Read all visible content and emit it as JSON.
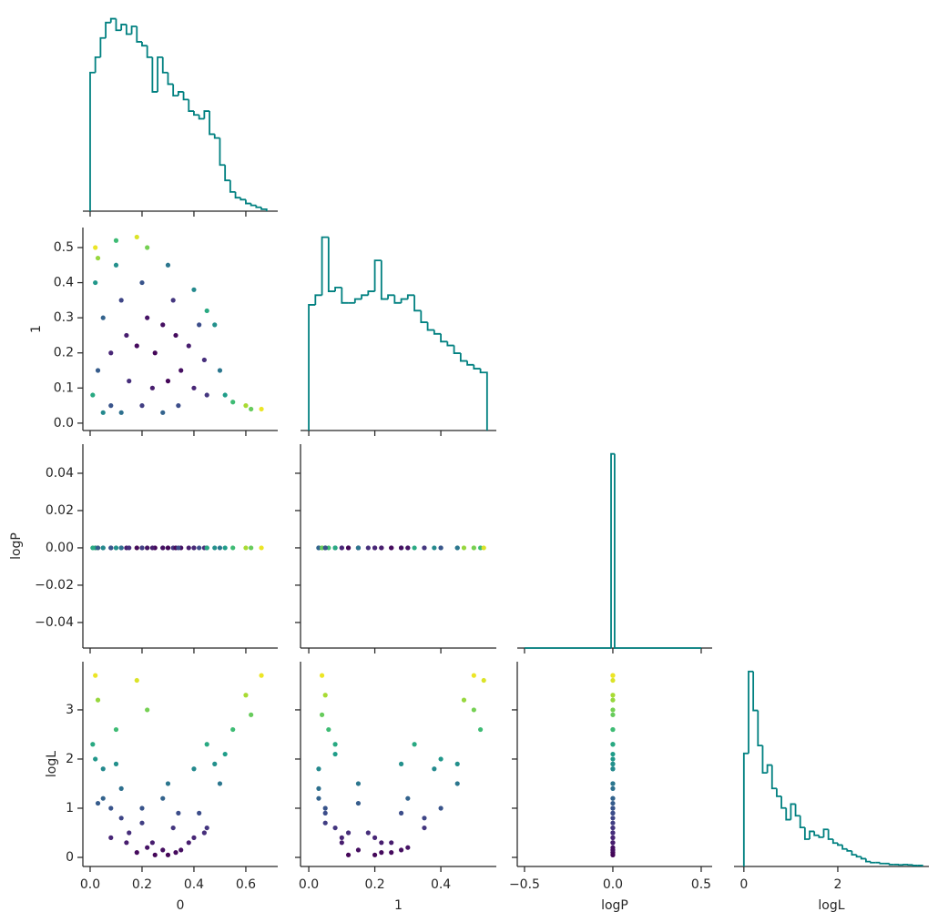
{
  "chart_data": [
    {
      "type": "histogram",
      "color": "#008080",
      "bins": [
        0,
        0.02,
        0.04,
        0.06,
        0.08,
        0.1,
        0.12,
        0.14,
        0.16,
        0.18,
        0.2,
        0.22,
        0.24,
        0.26,
        0.28,
        0.3,
        0.32,
        0.34,
        0.36,
        0.38,
        0.4,
        0.42,
        0.44,
        0.46,
        0.48,
        0.5,
        0.52,
        0.54,
        0.56,
        0.58,
        0.6,
        0.62,
        0.64,
        0.66,
        0.68
      ],
      "counts": [
        72,
        80,
        90,
        98,
        100,
        94,
        97,
        92,
        96,
        88,
        86,
        80,
        62,
        80,
        72,
        66,
        60,
        62,
        58,
        52,
        50,
        48,
        52,
        40,
        38,
        24,
        16,
        10,
        7,
        6,
        4,
        3,
        2,
        1
      ],
      "xlim": [
        -0.028,
        0.723
      ],
      "xticks": [
        0,
        0.2,
        0.4,
        0.6
      ],
      "ylim": [
        0,
        105
      ],
      "show_xticklabels": false
    },
    {
      "type": "scatter",
      "cmap": "viridis",
      "clim": [
        0,
        3.8
      ],
      "x": [
        0.02,
        0.03,
        0.1,
        0.18,
        0.22,
        0.66,
        0.6,
        0.55,
        0.02,
        0.05,
        0.03,
        0.05,
        0.1,
        0.12,
        0.14,
        0.15,
        0.12,
        0.2,
        0.22,
        0.25,
        0.24,
        0.28,
        0.3,
        0.32,
        0.33,
        0.35,
        0.34,
        0.4,
        0.42,
        0.44,
        0.45,
        0.48,
        0.5,
        0.52,
        0.08,
        0.18,
        0.28,
        0.38,
        0.2,
        0.4,
        0.01,
        0.62,
        0.45,
        0.08,
        0.3
      ],
      "y": [
        0.5,
        0.47,
        0.52,
        0.53,
        0.5,
        0.04,
        0.05,
        0.06,
        0.4,
        0.3,
        0.15,
        0.03,
        0.45,
        0.35,
        0.25,
        0.12,
        0.03,
        0.4,
        0.3,
        0.2,
        0.1,
        0.03,
        0.45,
        0.35,
        0.25,
        0.15,
        0.05,
        0.38,
        0.28,
        0.18,
        0.08,
        0.28,
        0.15,
        0.08,
        0.2,
        0.22,
        0.28,
        0.22,
        0.05,
        0.1,
        0.08,
        0.04,
        0.32,
        0.05,
        0.12
      ],
      "c": [
        3.7,
        3.2,
        2.6,
        3.6,
        3.0,
        3.7,
        3.3,
        2.6,
        2.0,
        1.2,
        1.1,
        1.8,
        1.9,
        0.8,
        0.3,
        0.5,
        1.4,
        1.0,
        0.2,
        0.05,
        0.3,
        1.2,
        1.5,
        0.6,
        0.1,
        0.15,
        0.9,
        1.8,
        0.9,
        0.5,
        0.6,
        1.9,
        1.5,
        2.1,
        0.4,
        0.1,
        0.15,
        0.3,
        0.7,
        0.4,
        2.3,
        2.9,
        2.3,
        1.0,
        0.05
      ],
      "xlim": [
        -0.028,
        0.723
      ],
      "xticks": [
        0,
        0.2,
        0.4,
        0.6
      ],
      "show_xticklabels": false,
      "ylim": [
        -0.021,
        0.557
      ],
      "yticks": [
        {
          "value": 0,
          "label": "0.0"
        },
        0.1,
        0.2,
        0.3,
        0.4,
        0.5
      ],
      "ylabel": "1"
    },
    {
      "type": "histogram",
      "color": "#008080",
      "bins": [
        0,
        0.02,
        0.04,
        0.06,
        0.08,
        0.1,
        0.12,
        0.14,
        0.16,
        0.18,
        0.2,
        0.22,
        0.24,
        0.26,
        0.28,
        0.3,
        0.32,
        0.34,
        0.36,
        0.38,
        0.4,
        0.42,
        0.44,
        0.46,
        0.48,
        0.5,
        0.52,
        0.54
      ],
      "counts": [
        65,
        70,
        100,
        72,
        74,
        66,
        66,
        68,
        70,
        72,
        88,
        68,
        70,
        66,
        68,
        70,
        62,
        56,
        52,
        50,
        46,
        44,
        40,
        36,
        34,
        32,
        30
      ],
      "xlim": [
        -0.025,
        0.568
      ],
      "xticks": [
        0,
        0.2,
        0.4
      ],
      "ylim": [
        0,
        105
      ],
      "show_xticklabels": false
    },
    {
      "type": "scatter",
      "cmap": "viridis",
      "clim": [
        0,
        3.8
      ],
      "x": [
        0.02,
        0.03,
        0.1,
        0.18,
        0.22,
        0.66,
        0.6,
        0.55,
        0.02,
        0.05,
        0.03,
        0.05,
        0.1,
        0.12,
        0.14,
        0.15,
        0.12,
        0.2,
        0.22,
        0.25,
        0.24,
        0.28,
        0.3,
        0.32,
        0.33,
        0.35,
        0.34,
        0.4,
        0.42,
        0.44,
        0.45,
        0.48,
        0.5,
        0.52,
        0.08,
        0.18,
        0.28,
        0.38,
        0.2,
        0.4,
        0.01,
        0.62,
        0.45,
        0.08,
        0.3
      ],
      "y": [
        0,
        0,
        0,
        0,
        0,
        0,
        0,
        0,
        0,
        0,
        0,
        0,
        0,
        0,
        0,
        0,
        0,
        0,
        0,
        0,
        0,
        0,
        0,
        0,
        0,
        0,
        0,
        0,
        0,
        0,
        0,
        0,
        0,
        0,
        0,
        0,
        0,
        0,
        0,
        0,
        0,
        0,
        0,
        0,
        0
      ],
      "c": [
        3.7,
        3.2,
        2.6,
        3.6,
        3.0,
        3.7,
        3.3,
        2.6,
        2.0,
        1.2,
        1.1,
        1.8,
        1.9,
        0.8,
        0.3,
        0.5,
        1.4,
        1.0,
        0.2,
        0.05,
        0.3,
        1.2,
        1.5,
        0.6,
        0.1,
        0.15,
        0.9,
        1.8,
        0.9,
        0.5,
        0.6,
        1.9,
        1.5,
        2.1,
        0.4,
        0.1,
        0.15,
        0.3,
        0.7,
        0.4,
        2.3,
        2.9,
        2.3,
        1.0,
        0.05
      ],
      "xlim": [
        -0.028,
        0.723
      ],
      "xticks": [
        0,
        0.2,
        0.4,
        0.6
      ],
      "show_xticklabels": false,
      "ylim": [
        -0.0537,
        0.0556
      ],
      "yticks": [
        {
          "value": -0.04,
          "label": "−0.04"
        },
        {
          "value": -0.02,
          "label": "−0.02"
        },
        {
          "value": 0,
          "label": "0.00"
        },
        0.02,
        0.04
      ],
      "ylabel": "logP"
    },
    {
      "type": "scatter",
      "cmap": "viridis",
      "clim": [
        0,
        3.8
      ],
      "x": [
        0.5,
        0.47,
        0.52,
        0.53,
        0.5,
        0.04,
        0.05,
        0.06,
        0.4,
        0.3,
        0.15,
        0.03,
        0.45,
        0.35,
        0.25,
        0.12,
        0.03,
        0.4,
        0.3,
        0.2,
        0.1,
        0.03,
        0.45,
        0.35,
        0.25,
        0.15,
        0.05,
        0.38,
        0.28,
        0.18,
        0.08,
        0.28,
        0.15,
        0.08,
        0.2,
        0.22,
        0.28,
        0.22,
        0.05,
        0.1,
        0.08,
        0.04,
        0.32,
        0.05,
        0.12
      ],
      "y": [
        0,
        0,
        0,
        0,
        0,
        0,
        0,
        0,
        0,
        0,
        0,
        0,
        0,
        0,
        0,
        0,
        0,
        0,
        0,
        0,
        0,
        0,
        0,
        0,
        0,
        0,
        0,
        0,
        0,
        0,
        0,
        0,
        0,
        0,
        0,
        0,
        0,
        0,
        0,
        0,
        0,
        0,
        0,
        0,
        0
      ],
      "c": [
        3.7,
        3.2,
        2.6,
        3.6,
        3.0,
        3.7,
        3.3,
        2.6,
        2.0,
        1.2,
        1.1,
        1.8,
        1.9,
        0.8,
        0.3,
        0.5,
        1.4,
        1.0,
        0.2,
        0.05,
        0.3,
        1.2,
        1.5,
        0.6,
        0.1,
        0.15,
        0.9,
        1.8,
        0.9,
        0.5,
        0.6,
        1.9,
        1.5,
        2.1,
        0.4,
        0.1,
        0.15,
        0.3,
        0.7,
        0.4,
        2.3,
        2.9,
        2.3,
        1.0,
        0.05
      ],
      "xlim": [
        -0.025,
        0.568
      ],
      "xticks": [
        0,
        0.2,
        0.4
      ],
      "show_xticklabels": false,
      "ylim": [
        -0.0537,
        0.0556
      ],
      "yticks": [
        -0.04,
        -0.02,
        0,
        0.02,
        0.04
      ],
      "show_yticklabels": false
    },
    {
      "type": "histogram",
      "color": "#008080",
      "bins": [
        -0.5,
        -0.01,
        0.01,
        0.5
      ],
      "counts": [
        0,
        100,
        0
      ],
      "xlim": [
        -0.541,
        0.562
      ],
      "xticks": [
        -0.5,
        0,
        0.5
      ],
      "ylim": [
        0,
        105
      ],
      "show_xticklabels": false
    },
    {
      "type": "scatter",
      "cmap": "viridis",
      "clim": [
        0,
        3.8
      ],
      "x": [
        0.02,
        0.03,
        0.1,
        0.18,
        0.22,
        0.66,
        0.6,
        0.55,
        0.02,
        0.05,
        0.03,
        0.05,
        0.1,
        0.12,
        0.14,
        0.15,
        0.12,
        0.2,
        0.22,
        0.25,
        0.24,
        0.28,
        0.3,
        0.32,
        0.33,
        0.35,
        0.34,
        0.4,
        0.42,
        0.44,
        0.45,
        0.48,
        0.5,
        0.52,
        0.08,
        0.18,
        0.28,
        0.38,
        0.2,
        0.4,
        0.01,
        0.62,
        0.45,
        0.08,
        0.3
      ],
      "y": [
        3.7,
        3.2,
        2.6,
        3.6,
        3.0,
        3.7,
        3.3,
        2.6,
        2.0,
        1.2,
        1.1,
        1.8,
        1.9,
        0.8,
        0.3,
        0.5,
        1.4,
        1.0,
        0.2,
        0.05,
        0.3,
        1.2,
        1.5,
        0.6,
        0.1,
        0.15,
        0.9,
        1.8,
        0.9,
        0.5,
        0.6,
        1.9,
        1.5,
        2.1,
        0.4,
        0.1,
        0.15,
        0.3,
        0.7,
        0.4,
        2.3,
        2.9,
        2.3,
        1.0,
        0.05
      ],
      "c": [
        3.7,
        3.2,
        2.6,
        3.6,
        3.0,
        3.7,
        3.3,
        2.6,
        2.0,
        1.2,
        1.1,
        1.8,
        1.9,
        0.8,
        0.3,
        0.5,
        1.4,
        1.0,
        0.2,
        0.05,
        0.3,
        1.2,
        1.5,
        0.6,
        0.1,
        0.15,
        0.9,
        1.8,
        0.9,
        0.5,
        0.6,
        1.9,
        1.5,
        2.1,
        0.4,
        0.1,
        0.15,
        0.3,
        0.7,
        0.4,
        2.3,
        2.9,
        2.3,
        1.0,
        0.05
      ],
      "xlim": [
        -0.028,
        0.723
      ],
      "xticks": [
        {
          "value": 0,
          "label": "0.0"
        },
        0.2,
        0.4,
        0.6
      ],
      "xlabel": "0",
      "ylim": [
        -0.185,
        3.98
      ],
      "yticks": [
        0,
        1,
        2,
        3
      ],
      "ylabel": "logL"
    },
    {
      "type": "scatter",
      "cmap": "viridis",
      "clim": [
        0,
        3.8
      ],
      "x": [
        0.5,
        0.47,
        0.52,
        0.53,
        0.5,
        0.04,
        0.05,
        0.06,
        0.4,
        0.3,
        0.15,
        0.03,
        0.45,
        0.35,
        0.25,
        0.12,
        0.03,
        0.4,
        0.3,
        0.2,
        0.1,
        0.03,
        0.45,
        0.35,
        0.25,
        0.15,
        0.05,
        0.38,
        0.28,
        0.18,
        0.08,
        0.28,
        0.15,
        0.08,
        0.2,
        0.22,
        0.28,
        0.22,
        0.05,
        0.1,
        0.08,
        0.04,
        0.32,
        0.05,
        0.12
      ],
      "y": [
        3.7,
        3.2,
        2.6,
        3.6,
        3.0,
        3.7,
        3.3,
        2.6,
        2.0,
        1.2,
        1.1,
        1.8,
        1.9,
        0.8,
        0.3,
        0.5,
        1.4,
        1.0,
        0.2,
        0.05,
        0.3,
        1.2,
        1.5,
        0.6,
        0.1,
        0.15,
        0.9,
        1.8,
        0.9,
        0.5,
        0.6,
        1.9,
        1.5,
        2.1,
        0.4,
        0.1,
        0.15,
        0.3,
        0.7,
        0.4,
        2.3,
        2.9,
        2.3,
        1.0,
        0.05
      ],
      "c": [
        3.7,
        3.2,
        2.6,
        3.6,
        3.0,
        3.7,
        3.3,
        2.6,
        2.0,
        1.2,
        1.1,
        1.8,
        1.9,
        0.8,
        0.3,
        0.5,
        1.4,
        1.0,
        0.2,
        0.05,
        0.3,
        1.2,
        1.5,
        0.6,
        0.1,
        0.15,
        0.9,
        1.8,
        0.9,
        0.5,
        0.6,
        1.9,
        1.5,
        2.1,
        0.4,
        0.1,
        0.15,
        0.3,
        0.7,
        0.4,
        2.3,
        2.9,
        2.3,
        1.0,
        0.05
      ],
      "xlim": [
        -0.025,
        0.568
      ],
      "xticks": [
        {
          "value": 0,
          "label": "0.0"
        },
        0.2,
        0.4
      ],
      "xlabel": "1",
      "ylim": [
        -0.185,
        3.98
      ],
      "yticks": [
        0,
        1,
        2,
        3
      ],
      "show_yticklabels": false
    },
    {
      "type": "scatter",
      "cmap": "viridis",
      "clim": [
        0,
        3.8
      ],
      "x": [
        0,
        0,
        0,
        0,
        0,
        0,
        0,
        0,
        0,
        0,
        0,
        0,
        0,
        0,
        0,
        0,
        0,
        0,
        0,
        0,
        0,
        0,
        0,
        0,
        0,
        0,
        0,
        0,
        0,
        0,
        0,
        0,
        0,
        0,
        0,
        0,
        0,
        0,
        0,
        0,
        0,
        0,
        0,
        0,
        0
      ],
      "y": [
        3.7,
        3.2,
        2.6,
        3.6,
        3.0,
        3.7,
        3.3,
        2.6,
        2.0,
        1.2,
        1.1,
        1.8,
        1.9,
        0.8,
        0.3,
        0.5,
        1.4,
        1.0,
        0.2,
        0.05,
        0.3,
        1.2,
        1.5,
        0.6,
        0.1,
        0.15,
        0.9,
        1.8,
        0.9,
        0.5,
        0.6,
        1.9,
        1.5,
        2.1,
        0.4,
        0.1,
        0.15,
        0.3,
        0.7,
        0.4,
        2.3,
        2.9,
        2.3,
        1.0,
        0.05
      ],
      "c": [
        3.7,
        3.2,
        2.6,
        3.6,
        3.0,
        3.7,
        3.3,
        2.6,
        2.0,
        1.2,
        1.1,
        1.8,
        1.9,
        0.8,
        0.3,
        0.5,
        1.4,
        1.0,
        0.2,
        0.05,
        0.3,
        1.2,
        1.5,
        0.6,
        0.1,
        0.15,
        0.9,
        1.8,
        0.9,
        0.5,
        0.6,
        1.9,
        1.5,
        2.1,
        0.4,
        0.1,
        0.15,
        0.3,
        0.7,
        0.4,
        2.3,
        2.9,
        2.3,
        1.0,
        0.05
      ],
      "xlim": [
        -0.541,
        0.562
      ],
      "xticks": [
        {
          "value": -0.5,
          "label": "−0.5"
        },
        {
          "value": 0,
          "label": "0.0"
        },
        0.5
      ],
      "xlabel": "logP",
      "ylim": [
        -0.185,
        3.98
      ],
      "yticks": [
        0,
        1,
        2,
        3
      ],
      "show_yticklabels": false
    },
    {
      "type": "histogram",
      "color": "#008080",
      "bins": [
        0,
        0.1,
        0.2,
        0.3,
        0.4,
        0.5,
        0.6,
        0.7,
        0.8,
        0.9,
        1.0,
        1.1,
        1.2,
        1.3,
        1.4,
        1.5,
        1.6,
        1.7,
        1.8,
        1.9,
        2.0,
        2.1,
        2.2,
        2.3,
        2.4,
        2.5,
        2.6,
        2.7,
        2.8,
        2.9,
        3.0,
        3.1,
        3.2,
        3.3,
        3.4,
        3.5,
        3.6,
        3.7,
        3.8
      ],
      "counts": [
        58,
        100,
        80,
        62,
        48,
        52,
        40,
        36,
        30,
        24,
        32,
        26,
        20,
        14,
        18,
        16,
        15,
        19,
        14,
        12,
        11,
        9,
        8,
        6,
        5,
        4,
        2.5,
        2,
        2,
        1.5,
        1.5,
        1,
        1,
        0.8,
        1,
        0.8,
        0.5,
        0.5
      ],
      "xlim": [
        -0.21,
        3.94
      ],
      "xticks": [
        0,
        2
      ],
      "xlabel": "logL",
      "ylim": [
        0,
        105
      ]
    }
  ]
}
